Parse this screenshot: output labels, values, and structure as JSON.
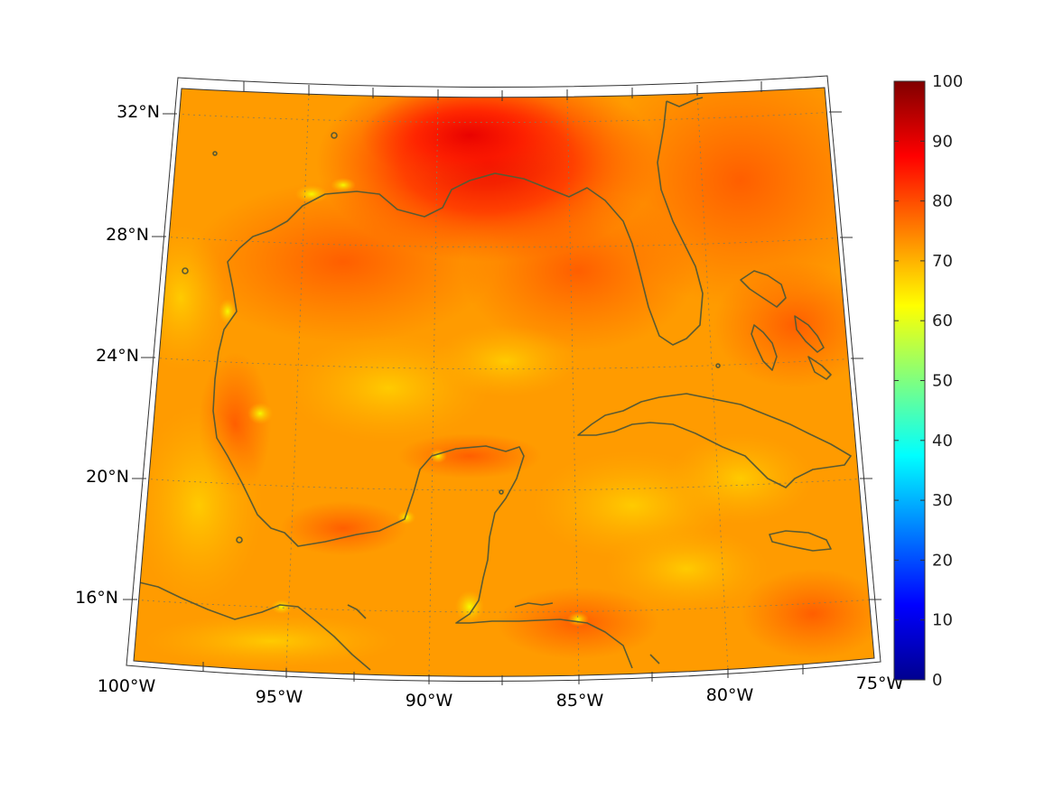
{
  "map": {
    "region": "Gulf of Mexico and Caribbean",
    "projection": "conic",
    "lon_range": [
      -100,
      -75
    ],
    "lat_range": [
      14,
      32
    ],
    "lat_labels": [
      "32°N",
      "28°N",
      "24°N",
      "20°N",
      "16°N"
    ],
    "lon_labels": [
      "100°W",
      "95°W",
      "90°W",
      "85°W",
      "80°W",
      "75°W"
    ],
    "coastline_color": "#5a5a32",
    "graticule": "dotted"
  },
  "colorbar": {
    "colormap": "jet",
    "min": 0,
    "max": 100,
    "ticks": [
      "100",
      "90",
      "80",
      "70",
      "60",
      "50",
      "40",
      "30",
      "20",
      "10",
      "0"
    ],
    "orientation": "vertical",
    "placement": "right"
  },
  "field": {
    "typical_value": 75,
    "max_region": "northern Gulf coast near Mississippi delta",
    "max_value": 92,
    "low_spots_value": 62
  }
}
